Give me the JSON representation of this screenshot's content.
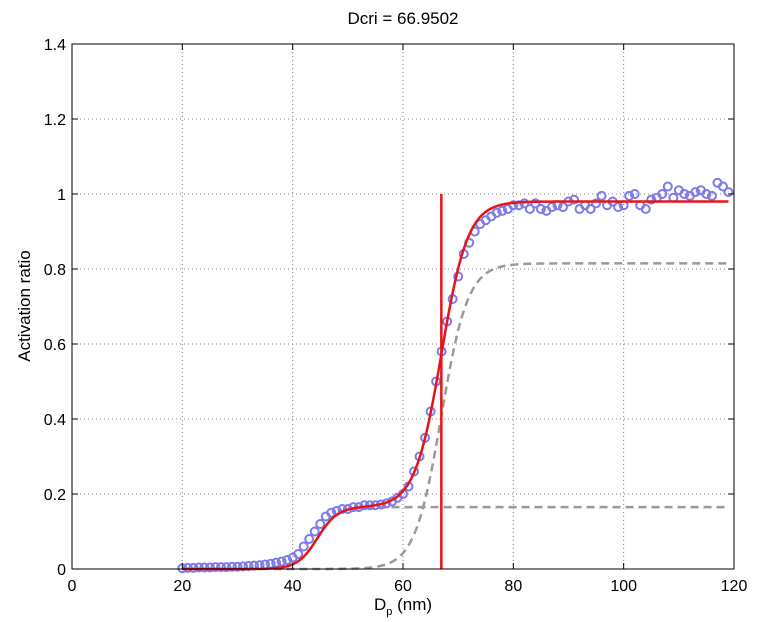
{
  "chart_data": {
    "type": "scatter",
    "title": "Dcri = 66.9502",
    "xlabel_main": "D",
    "xlabel_sub": "p",
    "xlabel_unit": " (nm)",
    "ylabel": "Activation ratio",
    "xlim": [
      0,
      120
    ],
    "ylim": [
      0,
      1.4
    ],
    "xticks": [
      "0",
      "20",
      "40",
      "60",
      "80",
      "100",
      "120"
    ],
    "yticks": [
      "0",
      "0.2",
      "0.4",
      "0.6",
      "0.8",
      "1",
      "1.2",
      "1.4"
    ],
    "grid": true,
    "critical_diameter": 66.9502,
    "colors": {
      "points": "#7b7bea",
      "fit": "#e8141b",
      "components": "#9a9a9a",
      "axis": "#000000"
    },
    "series": [
      {
        "kind": "measured",
        "marker": "circle",
        "x": [
          20,
          21,
          22,
          23,
          24,
          25,
          26,
          27,
          28,
          29,
          30,
          31,
          32,
          33,
          34,
          35,
          36,
          37,
          38,
          39,
          40,
          41,
          42,
          43,
          44,
          45,
          46,
          47,
          48,
          49,
          50,
          51,
          52,
          53,
          54,
          55,
          56,
          57,
          58,
          59,
          60,
          61,
          62,
          63,
          64,
          65,
          66,
          67,
          68,
          69,
          70,
          71,
          72,
          73,
          74,
          75,
          76,
          77,
          78,
          79,
          80,
          81,
          82,
          83,
          84,
          85,
          86,
          87,
          88,
          89,
          90,
          91,
          92,
          93,
          94,
          95,
          96,
          97,
          98,
          99,
          100,
          101,
          102,
          103,
          104,
          105,
          106,
          107,
          108,
          109,
          110,
          111,
          112,
          113,
          114,
          115,
          116,
          117,
          118,
          119
        ],
        "y": [
          0.002,
          0.003,
          0.003,
          0.004,
          0.004,
          0.004,
          0.005,
          0.005,
          0.005,
          0.006,
          0.006,
          0.007,
          0.008,
          0.009,
          0.01,
          0.012,
          0.014,
          0.017,
          0.02,
          0.024,
          0.03,
          0.04,
          0.06,
          0.08,
          0.1,
          0.12,
          0.14,
          0.15,
          0.155,
          0.16,
          0.16,
          0.165,
          0.165,
          0.17,
          0.17,
          0.17,
          0.172,
          0.175,
          0.18,
          0.19,
          0.2,
          0.22,
          0.26,
          0.3,
          0.35,
          0.42,
          0.5,
          0.58,
          0.66,
          0.72,
          0.78,
          0.84,
          0.87,
          0.9,
          0.92,
          0.93,
          0.94,
          0.95,
          0.955,
          0.96,
          0.97,
          0.97,
          0.975,
          0.96,
          0.975,
          0.96,
          0.955,
          0.965,
          0.97,
          0.965,
          0.98,
          0.985,
          0.96,
          0.97,
          0.96,
          0.975,
          0.995,
          0.97,
          0.98,
          0.965,
          0.97,
          0.995,
          1.0,
          0.97,
          0.96,
          0.985,
          0.99,
          1.0,
          1.02,
          0.99,
          1.01,
          1.0,
          0.995,
          1.005,
          1.01,
          1.0,
          0.995,
          1.03,
          1.02,
          1.005
        ]
      },
      {
        "kind": "fit",
        "line": "solid",
        "components": [
          {
            "amplitude": 0.165,
            "center": 44.5,
            "width": 1.8
          },
          {
            "amplitude": 0.815,
            "center": 66.95,
            "width": 2.4
          }
        ]
      },
      {
        "kind": "component-1",
        "line": "dashed",
        "amplitude": 0.165,
        "center": 44.5,
        "width": 1.8
      },
      {
        "kind": "component-2",
        "line": "dashed",
        "amplitude": 0.815,
        "center": 66.95,
        "width": 2.4
      }
    ],
    "vline": {
      "x": 66.9502,
      "y_from": 0,
      "y_to": 1.0
    }
  }
}
